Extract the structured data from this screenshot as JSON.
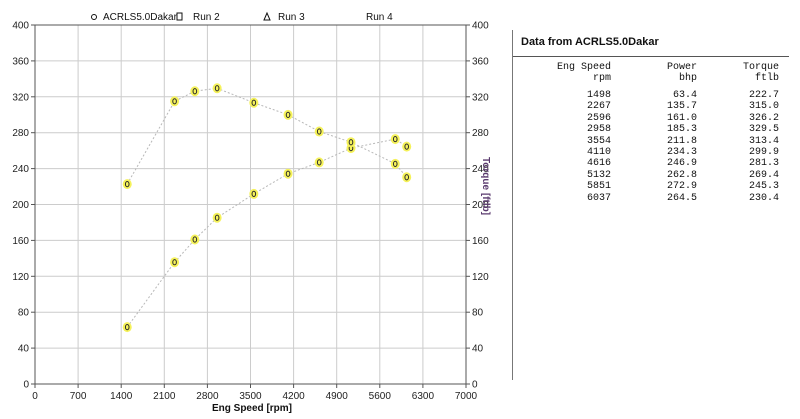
{
  "chart_data": {
    "type": "scatter",
    "legend": [
      "ACRLS5.0Dakar",
      "Run 2",
      "Run 3",
      "Run 4"
    ],
    "xlabel": "Eng Speed [rpm]",
    "ylabel_right": "Torque [ftlb]",
    "xlim": [
      0,
      7000
    ],
    "ylim": [
      0,
      400
    ],
    "x_ticks": [
      "0",
      "700",
      "1400",
      "2100",
      "2800",
      "3500",
      "4200",
      "4900",
      "5600",
      "6300",
      "7000"
    ],
    "y_ticks": [
      "0",
      "40",
      "80",
      "120",
      "160",
      "200",
      "240",
      "280",
      "320",
      "360",
      "400"
    ],
    "grid": true,
    "series": [
      {
        "name": "Power",
        "x": [
          1498,
          2267,
          2596,
          2958,
          3554,
          4110,
          4616,
          5132,
          5851,
          6037
        ],
        "values": [
          63.4,
          135.7,
          161.0,
          185.3,
          211.8,
          234.3,
          246.9,
          262.8,
          272.9,
          264.5
        ]
      },
      {
        "name": "Torque",
        "x": [
          1498,
          2267,
          2596,
          2958,
          3554,
          4110,
          4616,
          5132,
          5851,
          6037
        ],
        "values": [
          222.7,
          315.0,
          326.2,
          329.5,
          313.4,
          299.9,
          281.3,
          269.4,
          245.3,
          230.4
        ]
      }
    ],
    "colors": {
      "marker_fill": "#f5f25a",
      "marker_stroke": "#2a2a2a",
      "trend_line": "#b8b8b8",
      "grid": "#cccccc"
    }
  },
  "table": {
    "title": "Data from ACRLS5.0Dakar",
    "headers": [
      [
        "Eng Speed",
        "Power",
        "Torque"
      ],
      [
        "rpm",
        "bhp",
        "ftlb"
      ]
    ],
    "rows": [
      [
        "1498",
        "63.4",
        "222.7"
      ],
      [
        "2267",
        "135.7",
        "315.0"
      ],
      [
        "2596",
        "161.0",
        "326.2"
      ],
      [
        "2958",
        "185.3",
        "329.5"
      ],
      [
        "3554",
        "211.8",
        "313.4"
      ],
      [
        "4110",
        "234.3",
        "299.9"
      ],
      [
        "4616",
        "246.9",
        "281.3"
      ],
      [
        "5132",
        "262.8",
        "269.4"
      ],
      [
        "5851",
        "272.9",
        "245.3"
      ],
      [
        "6037",
        "264.5",
        "230.4"
      ]
    ]
  }
}
